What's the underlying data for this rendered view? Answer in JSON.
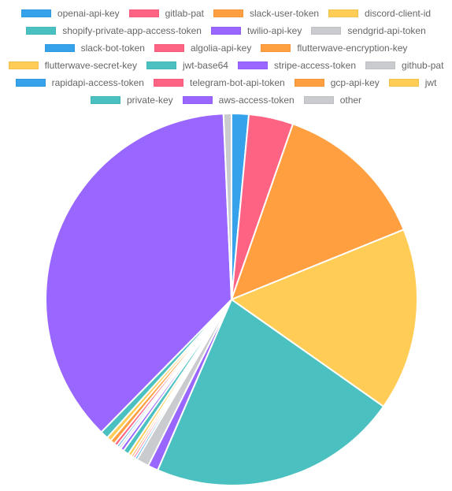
{
  "chart_data": {
    "type": "pie",
    "title": "",
    "legend_position": "top",
    "labels": [
      "openai-api-key",
      "gitlab-pat",
      "slack-user-token",
      "discord-client-id",
      "shopify-private-app-access-token",
      "twilio-api-key",
      "sendgrid-api-token",
      "slack-bot-token",
      "algolia-api-key",
      "flutterwave-encryption-key",
      "flutterwave-secret-key",
      "jwt-base64",
      "stripe-access-token",
      "github-pat",
      "rapidapi-access-token",
      "telegram-bot-api-token",
      "gcp-api-key",
      "jwt",
      "private-key",
      "aws-access-token",
      "other"
    ],
    "values": [
      1.5,
      3.9,
      13.6,
      16.0,
      21.9,
      0.9,
      1.1,
      0.2,
      0.2,
      0.2,
      0.3,
      0.5,
      0.3,
      0.2,
      0.2,
      0.3,
      0.4,
      0.4,
      0.7,
      37.2,
      0.7
    ],
    "colors": [
      "#36a2eb",
      "#ff6384",
      "#ff9f40",
      "#ffcd56",
      "#4bc0c0",
      "#9966ff",
      "#c9cbcf",
      "#36a2eb",
      "#ff6384",
      "#ff9f40",
      "#ffcd56",
      "#4bc0c0",
      "#9966ff",
      "#c9cbcf",
      "#36a2eb",
      "#ff6384",
      "#ff9f40",
      "#ffcd56",
      "#4bc0c0",
      "#9966ff",
      "#c9cbcf"
    ],
    "legend_rows": [
      [
        0,
        1,
        2,
        3
      ],
      [
        4,
        5,
        6
      ],
      [
        7,
        8,
        9
      ],
      [
        10,
        11,
        12,
        13
      ],
      [
        14,
        15,
        16,
        17
      ],
      [
        18,
        19,
        20
      ]
    ]
  }
}
